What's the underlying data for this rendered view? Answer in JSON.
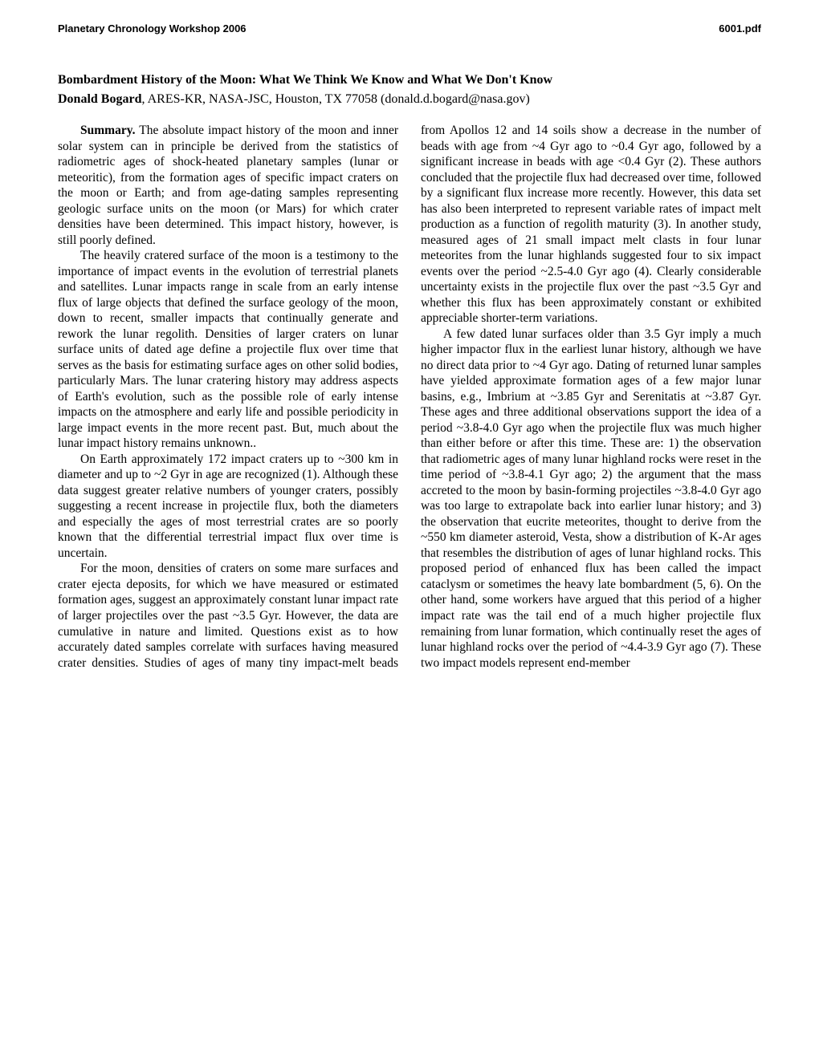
{
  "header": {
    "left": "Planetary Chronology Workshop 2006",
    "right": "6001.pdf"
  },
  "title": "Bombardment History of the Moon: What We Think We Know and What We Don't Know",
  "author": {
    "name": "Donald Bogard",
    "affiliation": ", ARES-KR, NASA-JSC, Houston, TX 77058 (donald.d.bogard@nasa.gov)"
  },
  "summary_label": "Summary.",
  "paragraphs": [
    "  The absolute impact history of the moon and inner solar system can in principle be derived from the statistics of radiometric ages of shock-heated planetary samples (lunar or meteoritic), from the formation ages of specific impact craters on the moon or Earth; and from age-dating samples representing geologic surface units on the moon (or Mars) for which crater densities have been determined.  This impact history, however, is still poorly defined.",
    "The heavily cratered surface of the moon is a testimony to the importance of impact events in the evolution of terrestrial planets and satellites. Lunar impacts range in scale from an early intense flux of large objects that defined the surface geology of the moon, down to recent, smaller impacts that continually generate and rework the lunar regolith.  Densities of larger craters on lunar surface units of dated age define a projectile flux over time that serves as the basis for estimating surface ages on other solid bodies, particularly Mars.  The lunar cratering history may address aspects of Earth's evolution, such as the possible role of early intense impacts on the atmosphere and early life and possible periodicity in large impact events in the more recent past. But, much about the lunar impact history remains unknown..",
    "On Earth approximately 172 impact craters up to ~300 km in diameter and up to ~2 Gyr in age are recognized (1).  Although these data suggest greater relative numbers of younger craters, possibly suggesting a recent increase in projectile flux, both the diameters and especially the ages of most terrestrial crates are so poorly known that the differential terrestrial impact flux over time is uncertain.",
    "For the moon, densities of craters on some mare surfaces and crater ejecta deposits, for which we have measured or estimated formation ages, suggest an approximately constant lunar impact rate of larger projectiles over the past ~3.5 Gyr.  However, the data are cumulative in nature and limited.  Questions exist as to how accurately dated samples correlate with surfaces having measured crater densities.  Studies of ages of many tiny impact-melt beads from Apollos 12 and 14 soils show a decrease in the number of beads with age from ~4 Gyr ago to ~0.4 Gyr ago, followed by a significant increase in beads with age <0.4 Gyr (2).  These authors concluded that the projectile flux had decreased over time, followed by a significant flux increase more recently.  However, this data set has also been interpreted to represent variable rates of impact melt production as a function of regolith maturity (3).  In another study, measured ages of 21 small impact melt clasts in four lunar meteorites from the lunar highlands suggested four to six impact events over the period ~2.5-4.0 Gyr ago (4). Clearly considerable uncertainty exists in the projectile flux over the past ~3.5 Gyr and whether this flux has been approximately constant or exhibited appreciable shorter-term variations.",
    "A few dated lunar surfaces older than 3.5 Gyr imply a much higher impactor flux in the earliest lunar history, although we have no direct data prior to ~4 Gyr ago.  Dating of returned lunar samples have yielded approximate formation ages of a few major lunar basins, e.g., Imbrium at ~3.85 Gyr and Serenitatis at ~3.87 Gyr.  These ages and three additional observations support the idea of a period ~3.8-4.0 Gyr ago when the projectile flux was much higher than either before or after this time.  These are: 1) the observation that radiometric ages of many lunar highland rocks were reset in the time period of ~3.8-4.1 Gyr ago; 2) the argument that the mass accreted to the moon by basin-forming projectiles ~3.8-4.0 Gyr ago was too large to extrapolate back into earlier lunar history; and 3) the observation that eucrite meteorites, thought to derive from the ~550 km diameter asteroid, Vesta, show a distribution of K-Ar ages that resembles the distribution of ages of lunar highland rocks.  This proposed period of enhanced flux has been called the impact cataclysm or sometimes the heavy late bombardment (5, 6).  On the other hand, some workers have argued that this period of a higher impact rate was the tail end of a much higher projectile flux remaining from lunar formation, which continually reset the ages of lunar highland rocks over the period of ~4.4-3.9 Gyr ago (7). These two impact models represent end-member"
  ]
}
